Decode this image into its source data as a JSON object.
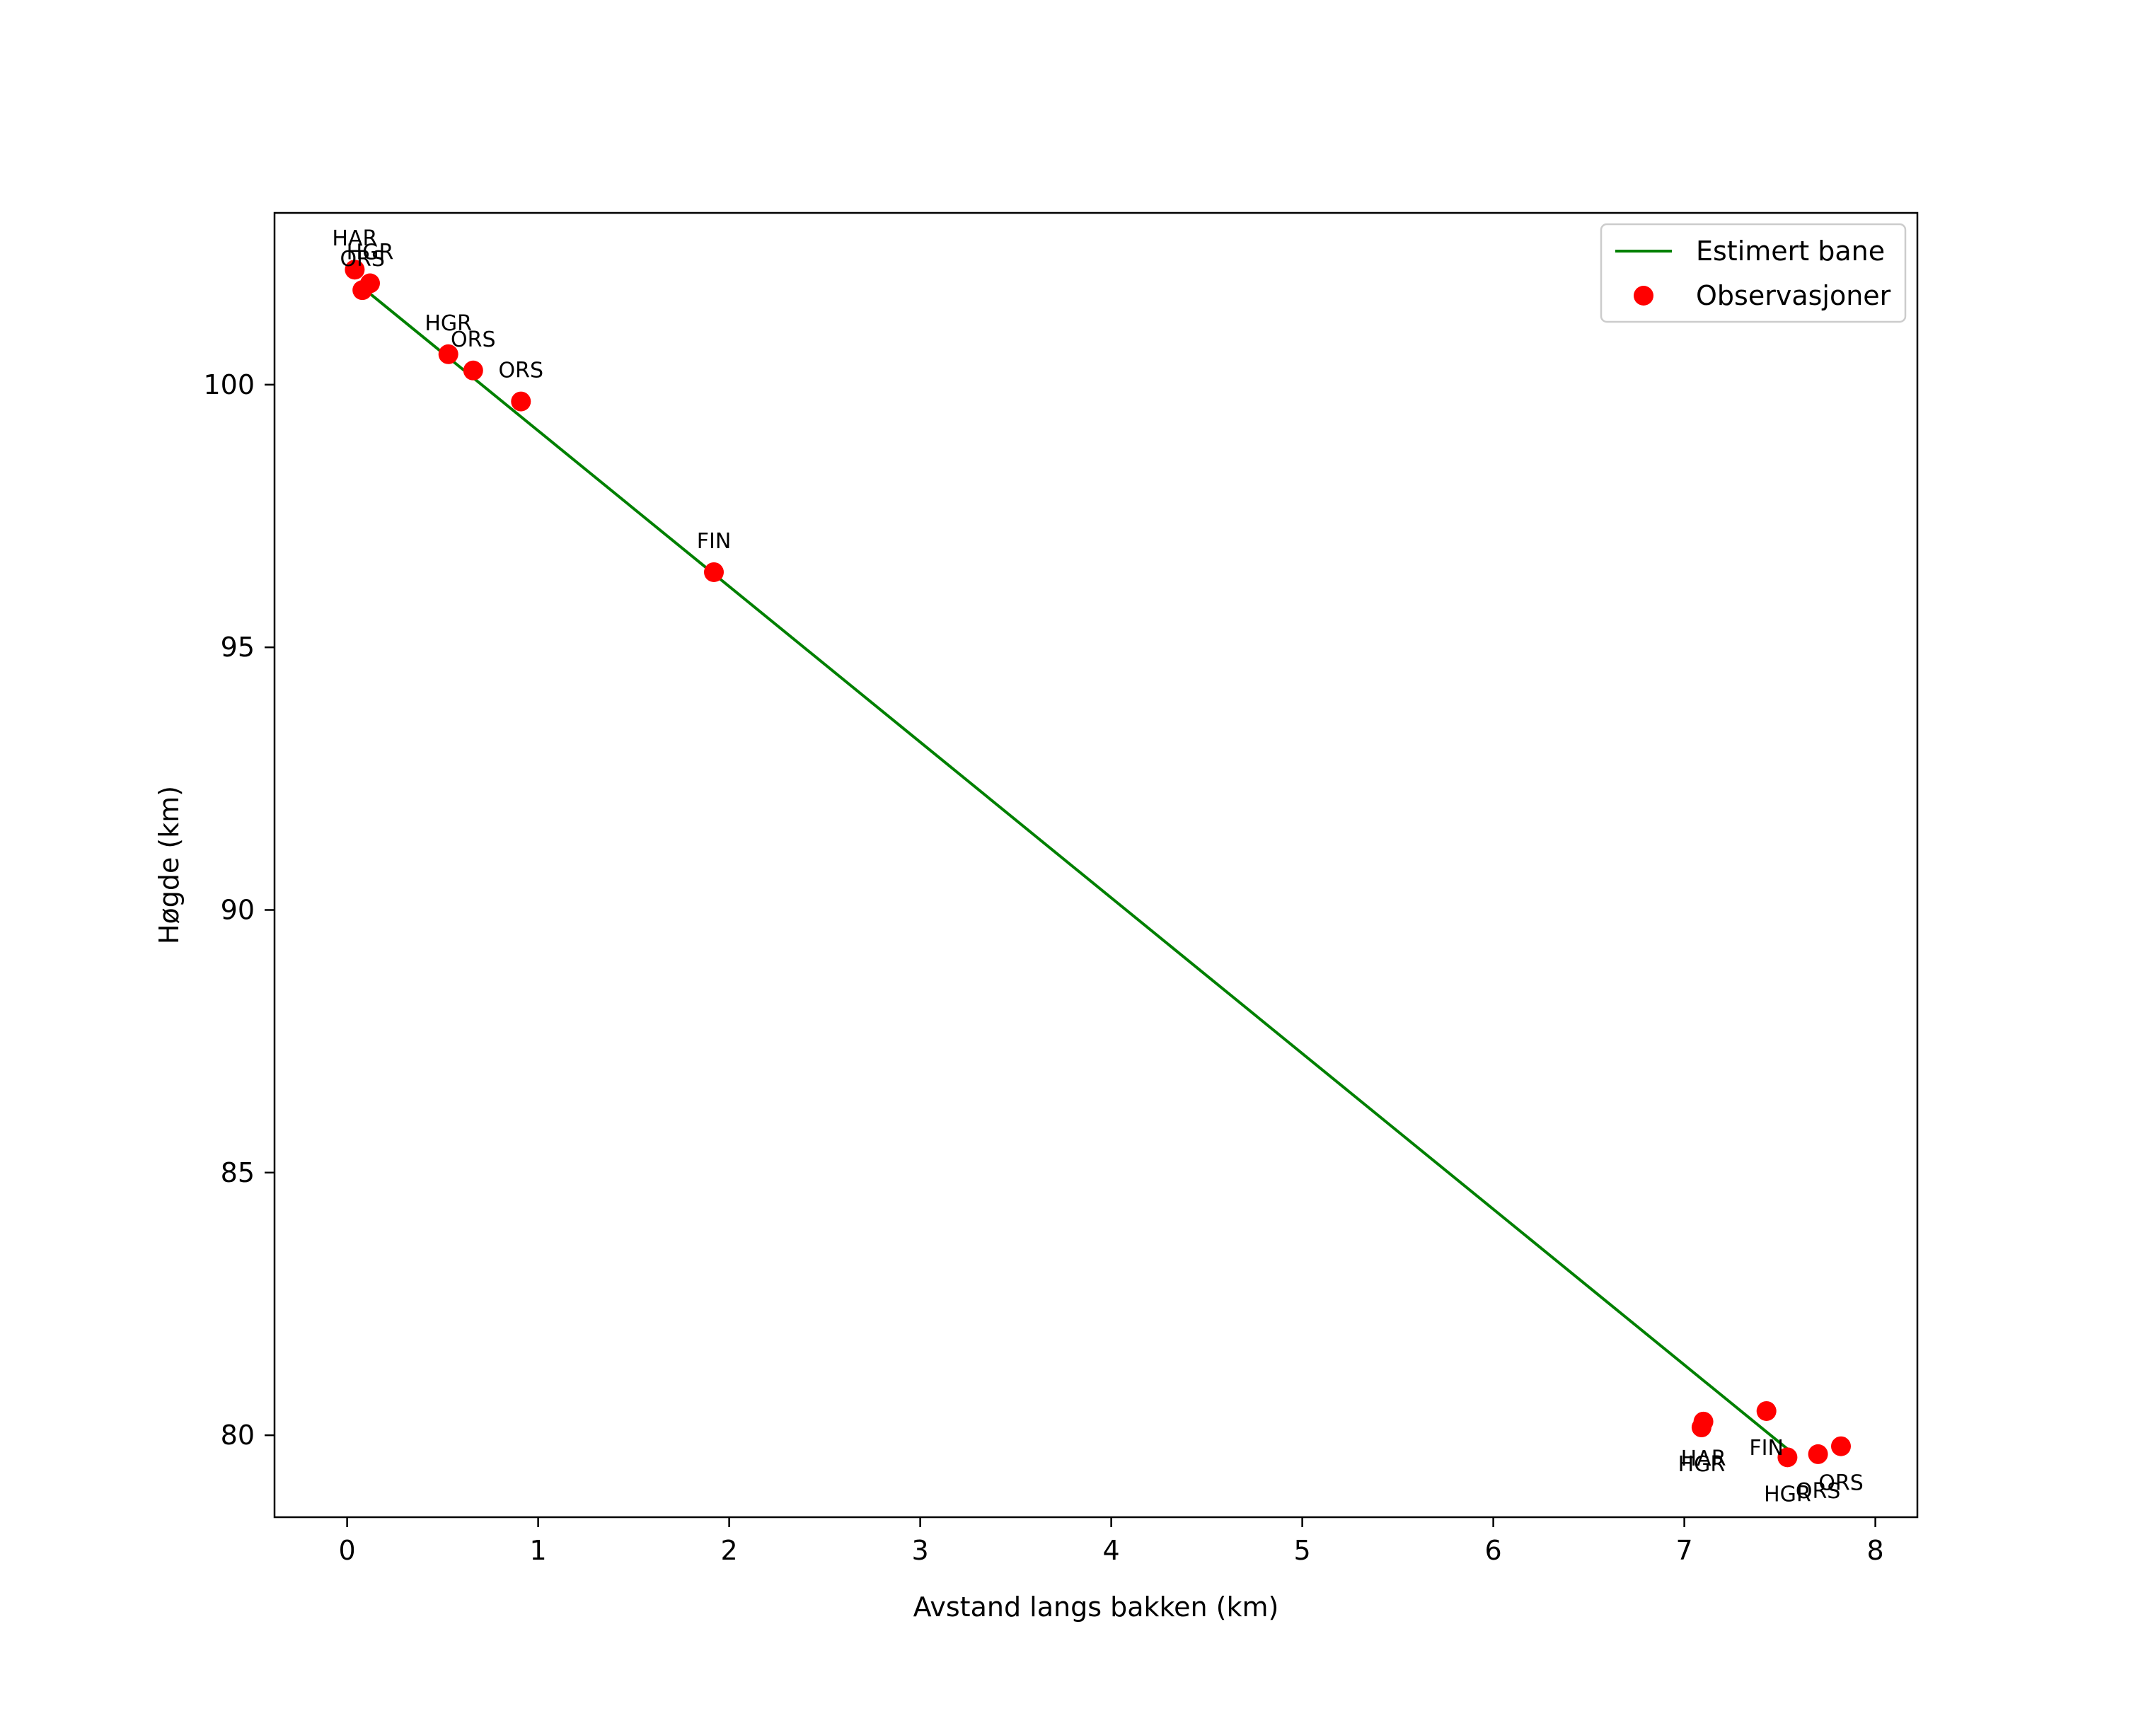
{
  "chart_data": {
    "type": "scatter",
    "title": "",
    "xlabel": "Avstand langs bakken (km)",
    "ylabel": "Høgde (km)",
    "xlim": [
      -0.38,
      8.22
    ],
    "ylim": [
      78.44,
      103.27
    ],
    "xticks": [
      0,
      1,
      2,
      3,
      4,
      5,
      6,
      7,
      8
    ],
    "yticks": [
      80,
      85,
      90,
      95,
      100
    ],
    "grid": false,
    "legend_position": "upper right",
    "series": [
      {
        "name": "Estimert bane",
        "type": "line",
        "color": "#008000",
        "x": [
          0.08,
          7.57
        ],
        "y": [
          101.85,
          79.65
        ]
      },
      {
        "name": "Observasjoner",
        "type": "scatter",
        "color": "#ff0000",
        "points": [
          {
            "x": 0.04,
            "y": 102.19,
            "label": "HAR",
            "label_pos": "above"
          },
          {
            "x": 0.12,
            "y": 101.93,
            "label": "HGR",
            "label_pos": "above"
          },
          {
            "x": 0.08,
            "y": 101.8,
            "label": "ORS",
            "label_pos": "above"
          },
          {
            "x": 0.53,
            "y": 100.58,
            "label": "HGR",
            "label_pos": "above"
          },
          {
            "x": 0.66,
            "y": 100.27,
            "label": "ORS",
            "label_pos": "above"
          },
          {
            "x": 0.91,
            "y": 99.68,
            "label": "ORS",
            "label_pos": "above"
          },
          {
            "x": 1.92,
            "y": 96.43,
            "label": "FIN",
            "label_pos": "above"
          },
          {
            "x": 7.1,
            "y": 80.26,
            "label": "HAR",
            "label_pos": "below"
          },
          {
            "x": 7.09,
            "y": 80.15,
            "label": "HGR",
            "label_pos": "below"
          },
          {
            "x": 7.43,
            "y": 80.46,
            "label": "FIN",
            "label_pos": "below"
          },
          {
            "x": 7.54,
            "y": 79.58,
            "label": "HGR",
            "label_pos": "below"
          },
          {
            "x": 7.7,
            "y": 79.64,
            "label": "ORS",
            "label_pos": "below"
          },
          {
            "x": 7.82,
            "y": 79.79,
            "label": "ORS",
            "label_pos": "below"
          }
        ]
      }
    ]
  },
  "legend": {
    "items": [
      {
        "label": "Estimert bane",
        "kind": "line",
        "color": "#008000"
      },
      {
        "label": "Observasjoner",
        "kind": "marker",
        "color": "#ff0000"
      }
    ]
  },
  "axes": {
    "xlabel": "Avstand langs bakken (km)",
    "ylabel": "Høgde (km)"
  }
}
